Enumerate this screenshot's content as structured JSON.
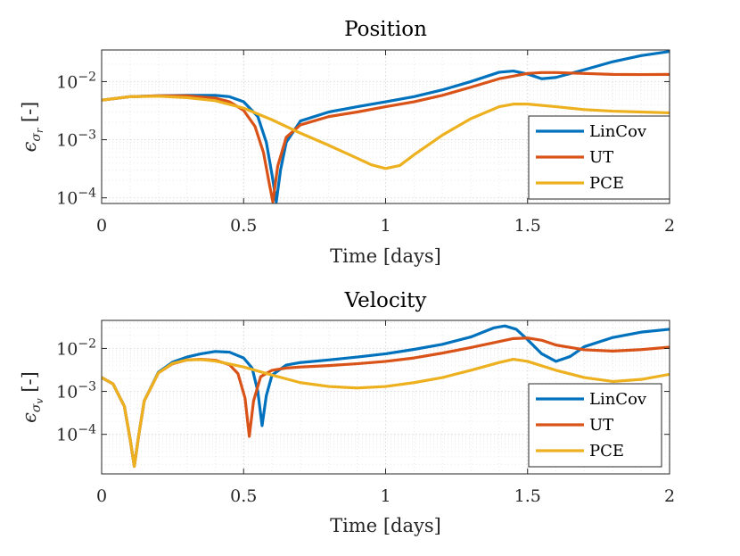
{
  "chart_data": [
    {
      "type": "line",
      "title": "Position",
      "xlabel": "Time [days]",
      "ylabel_prefix": "[-]",
      "ylabel_symbol": "epsilon",
      "ylabel_sub": "r",
      "xlim": [
        0,
        2
      ],
      "ylim": [
        8e-05,
        0.035
      ],
      "yscale": "log",
      "xticks": [
        0,
        0.5,
        1,
        1.5,
        2
      ],
      "xtick_labels": [
        "0",
        "0.5",
        "1",
        "1.5",
        "2"
      ],
      "yticks": [
        0.0001,
        0.001,
        0.01
      ],
      "ytick_labels": [
        "10^-4",
        "10^-3",
        "10^-2"
      ],
      "legend_position": "bottom-right",
      "series": [
        {
          "name": "LinCov",
          "color": "#0072BD",
          "x": [
            0,
            0.1,
            0.2,
            0.3,
            0.4,
            0.45,
            0.5,
            0.55,
            0.58,
            0.6,
            0.615,
            0.63,
            0.65,
            0.7,
            0.8,
            0.9,
            1.0,
            1.1,
            1.2,
            1.3,
            1.4,
            1.45,
            1.5,
            1.55,
            1.6,
            1.7,
            1.8,
            1.9,
            2.0
          ],
          "y": [
            0.0048,
            0.0055,
            0.0057,
            0.0058,
            0.0058,
            0.0055,
            0.0045,
            0.0025,
            0.0009,
            0.00025,
            8.5e-05,
            0.0003,
            0.0009,
            0.0021,
            0.003,
            0.0037,
            0.0045,
            0.0055,
            0.0072,
            0.01,
            0.0145,
            0.0152,
            0.0135,
            0.0112,
            0.0118,
            0.016,
            0.022,
            0.028,
            0.033
          ]
        },
        {
          "name": "UT",
          "color": "#D95319",
          "x": [
            0,
            0.1,
            0.2,
            0.3,
            0.4,
            0.45,
            0.5,
            0.54,
            0.57,
            0.59,
            0.603,
            0.62,
            0.65,
            0.7,
            0.8,
            0.9,
            1.0,
            1.1,
            1.2,
            1.3,
            1.4,
            1.5,
            1.55,
            1.6,
            1.7,
            1.8,
            1.9,
            2.0
          ],
          "y": [
            0.0048,
            0.0055,
            0.0057,
            0.0057,
            0.0052,
            0.0045,
            0.0032,
            0.0017,
            0.0006,
            0.00018,
            8.5e-05,
            0.00035,
            0.0011,
            0.0018,
            0.0025,
            0.003,
            0.0037,
            0.0045,
            0.0058,
            0.008,
            0.0112,
            0.0138,
            0.0143,
            0.0143,
            0.0138,
            0.0133,
            0.0132,
            0.0133
          ]
        },
        {
          "name": "PCE",
          "color": "#EDB120",
          "x": [
            0,
            0.1,
            0.2,
            0.3,
            0.4,
            0.5,
            0.6,
            0.7,
            0.8,
            0.9,
            0.95,
            1.0,
            1.05,
            1.1,
            1.2,
            1.3,
            1.4,
            1.45,
            1.5,
            1.6,
            1.7,
            1.8,
            1.9,
            2.0
          ],
          "y": [
            0.0048,
            0.0055,
            0.0056,
            0.0053,
            0.0047,
            0.0035,
            0.0022,
            0.0013,
            0.0008,
            0.00048,
            0.00037,
            0.00032,
            0.00036,
            0.00055,
            0.0012,
            0.0023,
            0.0037,
            0.0041,
            0.0041,
            0.0037,
            0.0033,
            0.0031,
            0.003,
            0.0029
          ]
        }
      ]
    },
    {
      "type": "line",
      "title": "Velocity",
      "xlabel": "Time [days]",
      "ylabel_prefix": "[-]",
      "ylabel_symbol": "epsilon",
      "ylabel_sub": "v",
      "xlim": [
        0,
        2
      ],
      "ylim": [
        1.2e-05,
        0.045
      ],
      "yscale": "log",
      "xticks": [
        0,
        0.5,
        1,
        1.5,
        2
      ],
      "xtick_labels": [
        "0",
        "0.5",
        "1",
        "1.5",
        "2"
      ],
      "yticks": [
        0.0001,
        0.001,
        0.01
      ],
      "ytick_labels": [
        "10^-4",
        "10^-3",
        "10^-2"
      ],
      "legend_position": "bottom-right",
      "series": [
        {
          "name": "LinCov",
          "color": "#0072BD",
          "x": [
            0,
            0.04,
            0.08,
            0.1,
            0.115,
            0.13,
            0.15,
            0.2,
            0.25,
            0.3,
            0.35,
            0.4,
            0.45,
            0.5,
            0.53,
            0.55,
            0.565,
            0.58,
            0.6,
            0.65,
            0.7,
            0.8,
            0.9,
            1.0,
            1.1,
            1.2,
            1.3,
            1.38,
            1.42,
            1.46,
            1.5,
            1.55,
            1.6,
            1.65,
            1.7,
            1.8,
            1.9,
            2.0
          ],
          "y": [
            0.0021,
            0.0015,
            0.00045,
            8e-05,
            1.8e-05,
            9e-05,
            0.0006,
            0.0028,
            0.0048,
            0.0063,
            0.0075,
            0.0085,
            0.0082,
            0.006,
            0.0035,
            0.001,
            0.00016,
            0.0008,
            0.0024,
            0.0041,
            0.0047,
            0.0054,
            0.0063,
            0.0075,
            0.0095,
            0.0125,
            0.0185,
            0.03,
            0.0335,
            0.028,
            0.016,
            0.0075,
            0.005,
            0.0065,
            0.011,
            0.018,
            0.024,
            0.028
          ]
        },
        {
          "name": "UT",
          "color": "#D95319",
          "x": [
            0,
            0.04,
            0.08,
            0.1,
            0.115,
            0.13,
            0.15,
            0.2,
            0.25,
            0.3,
            0.35,
            0.4,
            0.45,
            0.48,
            0.505,
            0.52,
            0.535,
            0.56,
            0.6,
            0.65,
            0.7,
            0.8,
            0.9,
            1.0,
            1.1,
            1.2,
            1.3,
            1.4,
            1.45,
            1.5,
            1.55,
            1.6,
            1.7,
            1.8,
            1.9,
            2.0
          ],
          "y": [
            0.0021,
            0.0015,
            0.00045,
            8e-05,
            1.8e-05,
            9e-05,
            0.0006,
            0.0027,
            0.0044,
            0.0054,
            0.0056,
            0.0053,
            0.0042,
            0.0026,
            0.0007,
            9e-05,
            0.0006,
            0.0022,
            0.0031,
            0.0035,
            0.0037,
            0.004,
            0.0044,
            0.005,
            0.006,
            0.0078,
            0.0105,
            0.0145,
            0.017,
            0.0175,
            0.0155,
            0.012,
            0.0093,
            0.0087,
            0.0094,
            0.0107
          ]
        },
        {
          "name": "PCE",
          "color": "#EDB120",
          "x": [
            0,
            0.04,
            0.08,
            0.1,
            0.115,
            0.13,
            0.15,
            0.2,
            0.25,
            0.3,
            0.35,
            0.4,
            0.5,
            0.6,
            0.7,
            0.8,
            0.9,
            1.0,
            1.1,
            1.2,
            1.3,
            1.4,
            1.45,
            1.5,
            1.6,
            1.7,
            1.8,
            1.9,
            2.0
          ],
          "y": [
            0.0021,
            0.0015,
            0.00045,
            8e-05,
            1.8e-05,
            9e-05,
            0.0006,
            0.0027,
            0.0045,
            0.0054,
            0.0055,
            0.0051,
            0.0037,
            0.0024,
            0.0016,
            0.0013,
            0.0012,
            0.0013,
            0.0016,
            0.0021,
            0.0031,
            0.0047,
            0.0056,
            0.005,
            0.0031,
            0.0021,
            0.0017,
            0.0019,
            0.0025
          ]
        }
      ]
    }
  ]
}
